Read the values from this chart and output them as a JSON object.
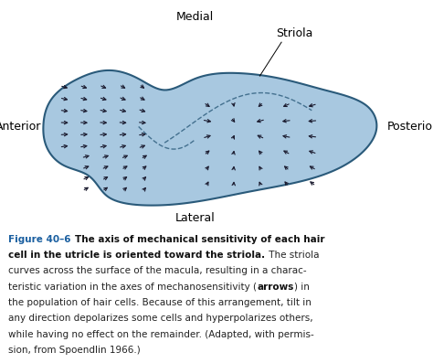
{
  "bg_color": "#ffffff",
  "shape_fill": "#a8c8e0",
  "shape_edge": "#2a5a7a",
  "arrow_color": "#1a1a2e",
  "dashed_line_color": "#2a5a7a",
  "label_medial": "Medial",
  "label_lateral": "Lateral",
  "label_anterior": "Anterior",
  "label_posterior": "Posterior",
  "label_striola": "Striola",
  "caption_bold1": "Figure 40–6 ",
  "caption_bold2": "The axis of mechanical sensitivity of each hair\ncell in the utricle is oriented toward the striola.",
  "caption_regular": " The striola\ncurves across the surface of the macula, resulting in a charac-\nteristic variation in the axes of mechanosensitivity (",
  "caption_bold3": "arrows",
  "caption_regular2": ") in\nthe population of hair cells. Because of this arrangement, tilt in\nany direction depolarizes some cells and hyperpolarizes others,\nwhile having no effect on the remainder. (Adapted, with permis-\nsion, from Spoendlin 1966.)",
  "caption_color_bold": "#1a5fa0",
  "caption_color_regular": "#222222",
  "fig_label_fontsize": 8.5,
  "axis_label_fontsize": 9
}
